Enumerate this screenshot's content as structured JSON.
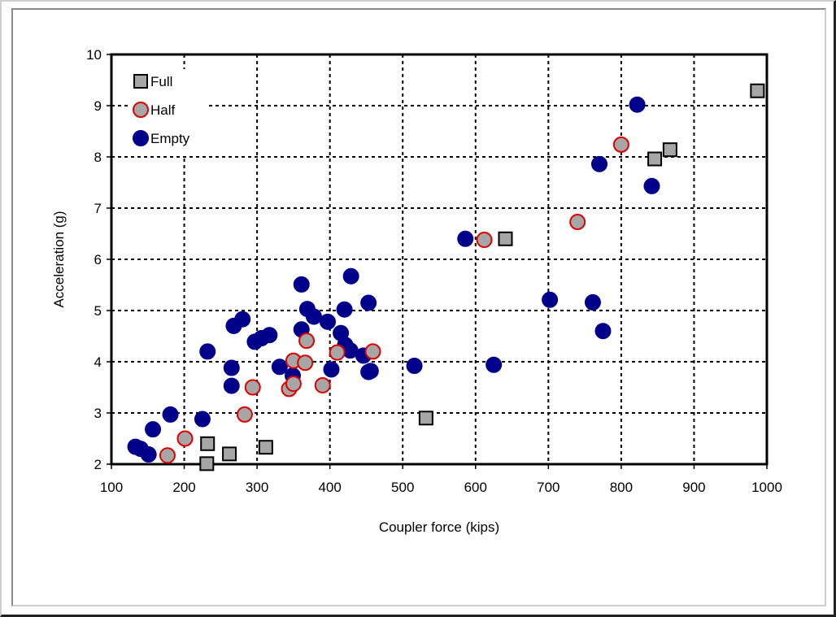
{
  "chart_data": {
    "type": "scatter",
    "title": "",
    "xlabel": "Coupler force (kips)",
    "ylabel": "Acceleration (g)",
    "xlim": [
      100,
      1000
    ],
    "ylim": [
      2,
      10
    ],
    "xticks": [
      100,
      200,
      300,
      400,
      500,
      600,
      700,
      800,
      900,
      1000
    ],
    "yticks": [
      2,
      3,
      4,
      5,
      6,
      7,
      8,
      9,
      10
    ],
    "grid": true,
    "legend_position": "top-left",
    "series": [
      {
        "name": "Full",
        "marker": "square",
        "fill": "#a6a6a6",
        "stroke": "#000000",
        "points": [
          [
            232,
            2.4
          ],
          [
            262,
            2.2
          ],
          [
            312,
            2.33
          ],
          [
            231,
            2.01
          ],
          [
            532,
            2.9
          ],
          [
            641,
            6.4
          ],
          [
            846,
            7.96
          ],
          [
            867,
            8.14
          ],
          [
            987,
            9.29
          ]
        ]
      },
      {
        "name": "Half",
        "marker": "circle",
        "fill": "#a6a6a6",
        "stroke": "#e00000",
        "points": [
          [
            177,
            2.17
          ],
          [
            201,
            2.5
          ],
          [
            283,
            2.97
          ],
          [
            294,
            3.5
          ],
          [
            344,
            3.47
          ],
          [
            350,
            3.57
          ],
          [
            350,
            4.02
          ],
          [
            366,
            3.98
          ],
          [
            368,
            4.41
          ],
          [
            390,
            3.54
          ],
          [
            410,
            4.18
          ],
          [
            459,
            4.2
          ],
          [
            612,
            6.38
          ],
          [
            740,
            6.73
          ],
          [
            800,
            8.24
          ]
        ]
      },
      {
        "name": "Empty",
        "marker": "circle",
        "fill": "#00008b",
        "stroke": "#00008b",
        "points": [
          [
            133,
            2.34
          ],
          [
            140,
            2.3
          ],
          [
            151,
            2.19
          ],
          [
            157,
            2.68
          ],
          [
            181,
            2.97
          ],
          [
            225,
            2.88
          ],
          [
            232,
            4.2
          ],
          [
            265,
            3.88
          ],
          [
            265,
            3.53
          ],
          [
            268,
            4.7
          ],
          [
            280,
            4.83
          ],
          [
            297,
            4.39
          ],
          [
            306,
            4.46
          ],
          [
            317,
            4.52
          ],
          [
            331,
            3.9
          ],
          [
            349,
            3.73
          ],
          [
            361,
            5.51
          ],
          [
            361,
            4.63
          ],
          [
            369,
            5.03
          ],
          [
            378,
            4.88
          ],
          [
            397,
            4.78
          ],
          [
            402,
            3.85
          ],
          [
            415,
            4.56
          ],
          [
            420,
            5.02
          ],
          [
            421,
            4.33
          ],
          [
            428,
            4.22
          ],
          [
            429,
            5.67
          ],
          [
            446,
            4.12
          ],
          [
            453,
            5.15
          ],
          [
            453,
            3.8
          ],
          [
            456,
            3.82
          ],
          [
            516,
            3.92
          ],
          [
            586,
            6.4
          ],
          [
            625,
            3.94
          ],
          [
            702,
            5.21
          ],
          [
            761,
            5.16
          ],
          [
            770,
            7.86
          ],
          [
            775,
            4.6
          ],
          [
            822,
            9.02
          ],
          [
            842,
            7.43
          ]
        ]
      }
    ]
  }
}
